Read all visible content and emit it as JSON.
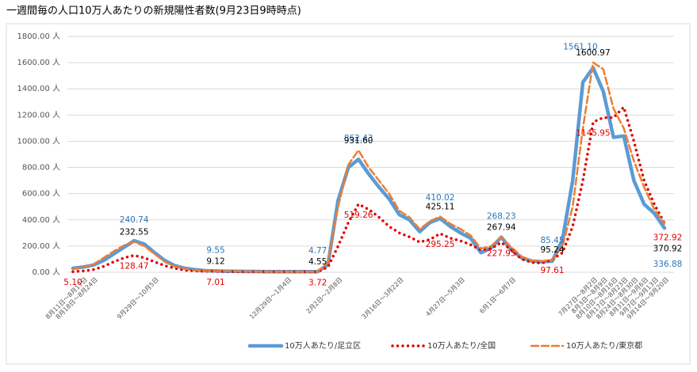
{
  "chart_data": {
    "type": "line",
    "title": "一週間毎の人口10万人あたりの新規陽性者数(9月23日9時時点)",
    "categories": [
      null,
      "8月11日～8月17日",
      "8月18日～8月24日",
      null,
      null,
      null,
      null,
      null,
      "9月29日～10月5日",
      null,
      null,
      null,
      null,
      null,
      null,
      null,
      null,
      null,
      null,
      null,
      null,
      "12月29日～1月4日",
      null,
      null,
      null,
      null,
      "2月2日～2月8日",
      null,
      null,
      null,
      null,
      null,
      "3月16日～3月22日",
      null,
      null,
      null,
      null,
      null,
      "4月27日～5月3日",
      null,
      null,
      null,
      null,
      "6月1日～6月7日",
      null,
      null,
      null,
      null,
      null,
      null,
      null,
      "7月27日～8月2日",
      "8月3日～8月9日",
      "8月10日～8月16日",
      "8月17日～8月23日",
      "8月24日～8月30日",
      "8月31日～9月6日",
      "9月7日～9月13日",
      "9月14日～9月20日"
    ],
    "series": [
      {
        "name": "10万人あたり/足立区",
        "color": "#5b9bd5",
        "style": "solid",
        "values": [
          30,
          40,
          55,
          90,
          140,
          190,
          240.74,
          215,
          150,
          90,
          50,
          30,
          20,
          12,
          9.55,
          8,
          7,
          6,
          6,
          5,
          5,
          5,
          5,
          5,
          4.77,
          60,
          550,
          800,
          862.43,
          750,
          650,
          560,
          440,
          400,
          310,
          380,
          410.02,
          350,
          300,
          260,
          150,
          185,
          268.23,
          170,
          110,
          85,
          80,
          85.45,
          250,
          700,
          1450,
          1561.1,
          1380,
          1030,
          1040,
          700,
          520,
          450,
          336.88
        ],
        "value_labels": [
          null,
          null,
          null,
          null,
          null,
          null,
          "240.74",
          null,
          null,
          null,
          null,
          null,
          null,
          null,
          "9.55",
          null,
          null,
          null,
          null,
          null,
          null,
          null,
          null,
          null,
          "4.77",
          null,
          null,
          null,
          "862.43",
          null,
          null,
          null,
          null,
          null,
          null,
          null,
          "410.02",
          null,
          null,
          null,
          null,
          null,
          "268.23",
          null,
          null,
          null,
          null,
          "85.45",
          null,
          null,
          null,
          "1561.10",
          null,
          null,
          null,
          null,
          null,
          null,
          "336.88"
        ]
      },
      {
        "name": "10万人あたり/全国",
        "color": "#e00000",
        "style": "dotted",
        "values": [
          5.1,
          10,
          20,
          45,
          80,
          110,
          128.47,
          110,
          80,
          50,
          30,
          15,
          10,
          8,
          7.01,
          6,
          5,
          5,
          4,
          4,
          4,
          4,
          4,
          4,
          3.72,
          40,
          200,
          380,
          519.26,
          480,
          420,
          350,
          300,
          270,
          230,
          250,
          295.25,
          260,
          240,
          210,
          170,
          180,
          227.95,
          170,
          100,
          75,
          70,
          97.61,
          150,
          350,
          700,
          1145.95,
          1180,
          1180,
          1260,
          1000,
          700,
          520,
          372.92
        ],
        "value_labels": [
          "5.10",
          null,
          null,
          null,
          null,
          null,
          "128.47",
          null,
          null,
          null,
          null,
          null,
          null,
          null,
          "7.01",
          null,
          null,
          null,
          null,
          null,
          null,
          null,
          null,
          null,
          "3.72",
          null,
          null,
          null,
          "519.26",
          null,
          null,
          null,
          null,
          null,
          null,
          null,
          "295.25",
          null,
          null,
          null,
          null,
          null,
          "227.95",
          null,
          null,
          null,
          null,
          "97.61",
          null,
          null,
          null,
          "1145.95",
          null,
          null,
          null,
          null,
          null,
          null,
          "372.92"
        ]
      },
      {
        "name": "10万人あたり/東京都",
        "color": "#ed7d31",
        "style": "dashed",
        "values": [
          25,
          40,
          60,
          110,
          160,
          205,
          232.55,
          200,
          140,
          80,
          45,
          25,
          15,
          11,
          9.12,
          8,
          7,
          6,
          6,
          5,
          5,
          5,
          5,
          5,
          4.55,
          80,
          500,
          820,
          931.6,
          800,
          700,
          600,
          470,
          420,
          330,
          390,
          425.11,
          370,
          330,
          280,
          180,
          200,
          267.94,
          190,
          120,
          90,
          85,
          95.24,
          200,
          500,
          1100,
          1600.97,
          1550,
          1250,
          1100,
          850,
          650,
          480,
          370.92
        ],
        "value_labels": [
          null,
          null,
          null,
          null,
          null,
          null,
          "232.55",
          null,
          null,
          null,
          null,
          null,
          null,
          null,
          "9.12",
          null,
          null,
          null,
          null,
          null,
          null,
          null,
          null,
          null,
          "4.55",
          null,
          null,
          null,
          "931.60",
          null,
          null,
          null,
          null,
          null,
          null,
          null,
          "425.11",
          null,
          null,
          null,
          null,
          null,
          "267.94",
          null,
          null,
          null,
          null,
          "95.24",
          null,
          null,
          null,
          "1600.97",
          null,
          null,
          null,
          null,
          null,
          null,
          "370.92"
        ]
      }
    ],
    "ylim": [
      0,
      1800
    ],
    "yticks": [
      {
        "value": 0,
        "label": "0.00 人"
      },
      {
        "value": 200,
        "label": "200.00 人"
      },
      {
        "value": 400,
        "label": "400.00 人"
      },
      {
        "value": 600,
        "label": "600.00 人"
      },
      {
        "value": 800,
        "label": "800.00 人"
      },
      {
        "value": 1000,
        "label": "1000.00 人"
      },
      {
        "value": 1200,
        "label": "1200.00 人"
      },
      {
        "value": 1400,
        "label": "1400.00 人"
      },
      {
        "value": 1600,
        "label": "1600.00 人"
      },
      {
        "value": 1800,
        "label": "1800.00 人"
      }
    ],
    "grid": true,
    "legend": "bottom"
  }
}
